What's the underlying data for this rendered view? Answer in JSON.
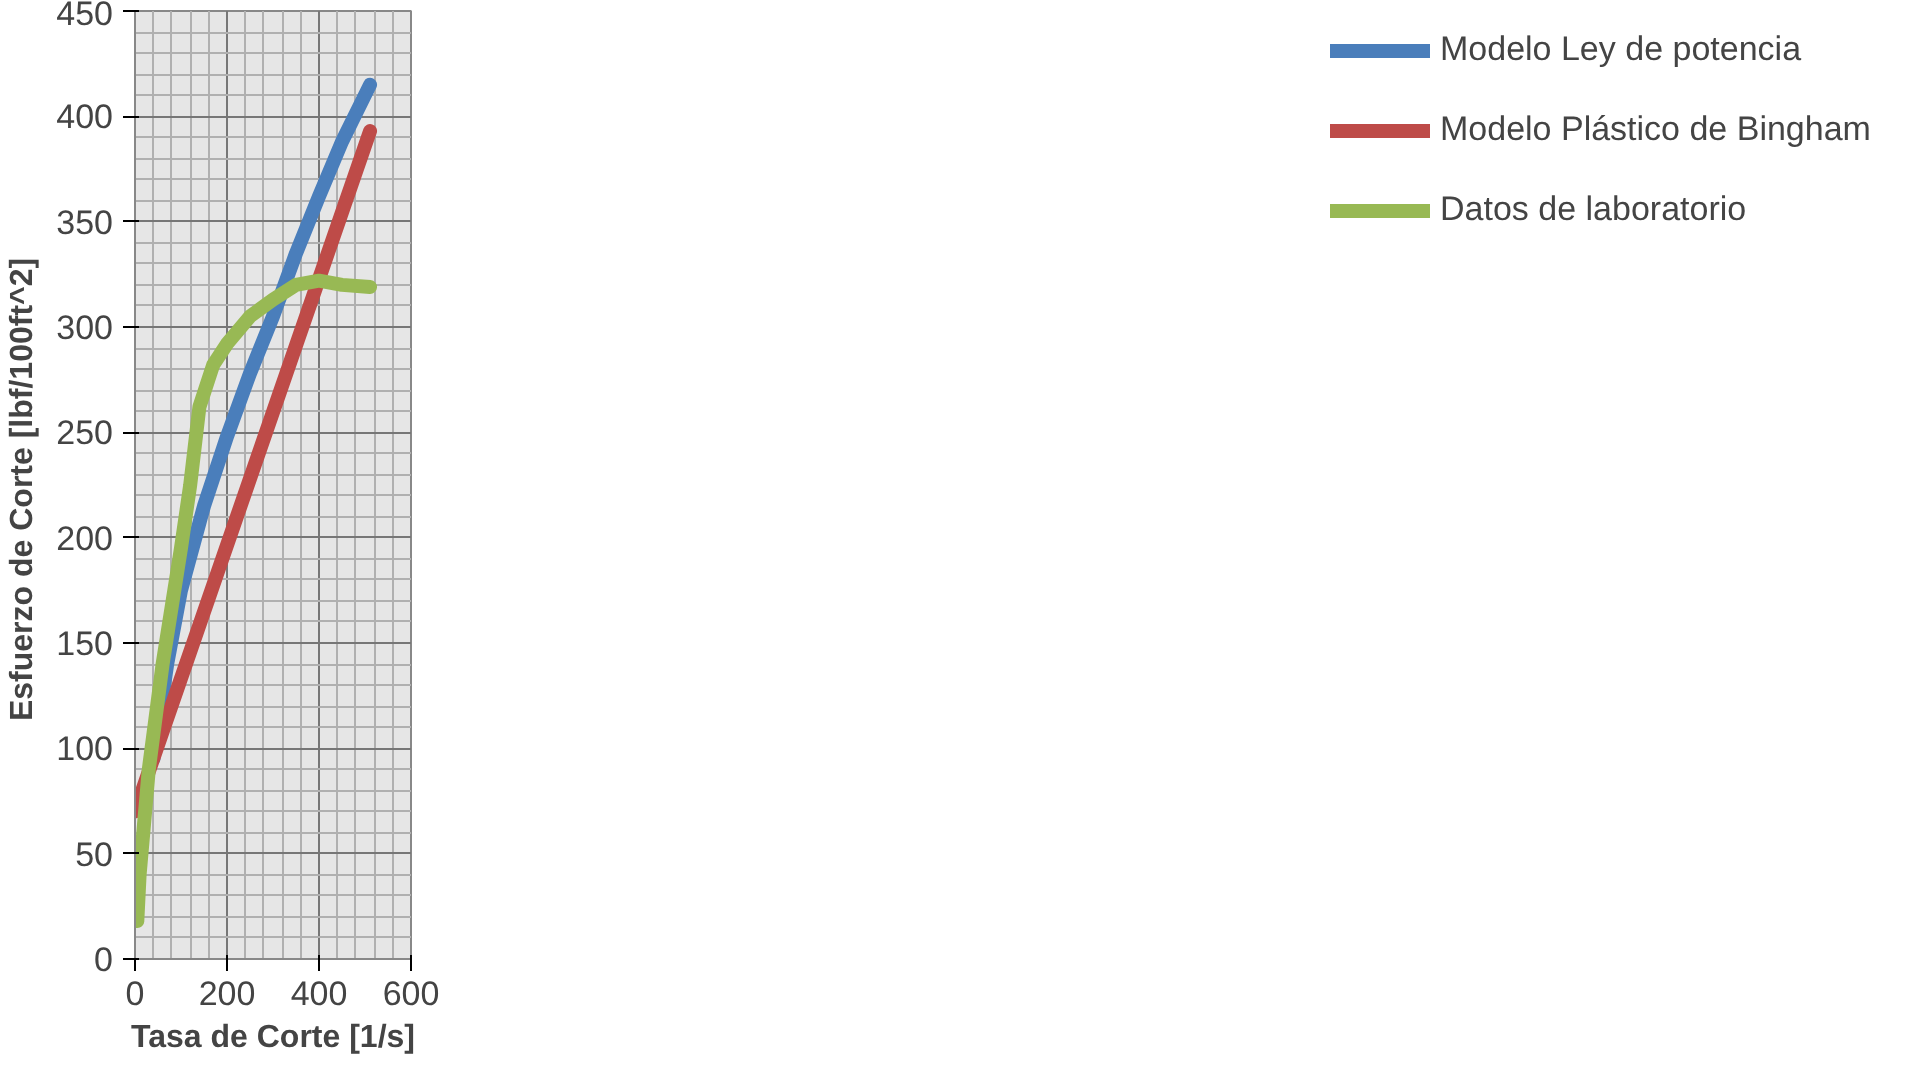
{
  "chart_data": {
    "type": "line",
    "xlabel": "Tasa de Corte [1/s]",
    "ylabel": "Esfuerzo de Corte  [lbf/100ft^2]",
    "xlim": [
      0,
      600
    ],
    "ylim": [
      0,
      450
    ],
    "xticks": [
      0,
      200,
      400,
      600
    ],
    "yticks": [
      0,
      50,
      100,
      150,
      200,
      250,
      300,
      350,
      400,
      450
    ],
    "grid": true,
    "legend": "right",
    "line_style": "solid",
    "marker": "none",
    "series": [
      {
        "name": "Modelo Ley de potencia",
        "color": "#4a7ebb",
        "x": [
          40,
          70,
          100,
          150,
          200,
          250,
          300,
          350,
          400,
          450,
          511
        ],
        "values": [
          95,
          140,
          175,
          215,
          248,
          278,
          305,
          335,
          362,
          388,
          415
        ]
      },
      {
        "name": "Modelo Plástico de Bingham",
        "color": "#be4b48",
        "x": [
          0,
          511
        ],
        "values": [
          70,
          393
        ]
      },
      {
        "name": "Datos de laboratorio",
        "color": "#98b954",
        "x": [
          5,
          10,
          30,
          60,
          100,
          120,
          140,
          170,
          200,
          250,
          300,
          350,
          400,
          450,
          511
        ],
        "values": [
          18,
          40,
          90,
          140,
          195,
          225,
          262,
          282,
          292,
          305,
          313,
          320,
          322,
          320,
          319
        ]
      }
    ]
  }
}
